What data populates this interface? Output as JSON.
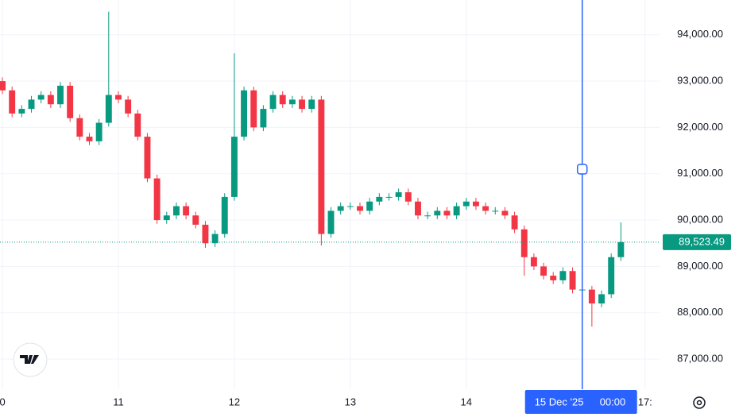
{
  "chart_data": {
    "type": "candlestick",
    "up_color": "#089981",
    "down_color": "#f23645",
    "grid": true,
    "x": [
      0,
      2,
      4,
      6,
      8,
      10,
      12,
      14,
      16,
      18,
      20,
      22,
      24,
      26,
      28,
      30,
      32,
      34,
      36,
      38,
      40,
      42,
      44,
      46,
      48,
      50,
      52,
      54,
      56,
      58,
      60,
      62,
      64,
      66,
      68,
      70,
      72,
      74,
      76,
      78,
      80,
      82,
      84,
      86,
      88,
      90,
      92,
      94,
      96,
      98,
      100,
      102,
      104,
      106,
      108,
      110,
      112,
      114,
      116,
      118,
      120,
      122,
      124,
      126,
      128
    ],
    "open": [
      93000,
      92800,
      92300,
      92400,
      92600,
      92700,
      92500,
      92900,
      92200,
      91800,
      91700,
      92100,
      92700,
      92600,
      92300,
      91800,
      90900,
      90000,
      90100,
      90300,
      90100,
      89900,
      89500,
      89700,
      90500,
      91800,
      92800,
      92000,
      92400,
      92700,
      92500,
      92600,
      92400,
      92600,
      89700,
      90200,
      90300,
      90300,
      90200,
      90400,
      90500,
      90500,
      90600,
      90400,
      90100,
      90100,
      90200,
      90100,
      90300,
      90400,
      90300,
      90200,
      90200,
      90100,
      89800,
      89200,
      89000,
      88800,
      88700,
      88900,
      88500,
      88500,
      88200,
      88400,
      89200
    ],
    "high": [
      93080,
      92880,
      92480,
      92680,
      92780,
      92780,
      92980,
      92980,
      92280,
      91880,
      92180,
      94500,
      92780,
      92680,
      92380,
      91880,
      90980,
      90180,
      90380,
      90380,
      90180,
      89980,
      89780,
      90580,
      93600,
      92880,
      92880,
      92480,
      92780,
      92780,
      92680,
      92680,
      92680,
      92680,
      90280,
      90380,
      90380,
      90380,
      90480,
      90580,
      90580,
      90680,
      90680,
      90480,
      90180,
      90280,
      90280,
      90380,
      90480,
      90480,
      90380,
      90280,
      90280,
      90180,
      89880,
      89280,
      89080,
      88880,
      88980,
      88980,
      88580,
      88580,
      88480,
      89280,
      89950
    ],
    "low": [
      92720,
      92220,
      92220,
      92320,
      92520,
      92420,
      92420,
      92120,
      91720,
      91620,
      91620,
      92020,
      92520,
      92220,
      91720,
      90820,
      89920,
      89920,
      90020,
      90020,
      89820,
      89400,
      89420,
      89620,
      90420,
      91720,
      91920,
      91920,
      92320,
      92420,
      92420,
      92320,
      92320,
      89450,
      89620,
      90120,
      90220,
      90120,
      90120,
      90320,
      90420,
      90420,
      90320,
      90020,
      90020,
      90020,
      90020,
      90020,
      90220,
      90220,
      90120,
      90120,
      90020,
      89720,
      88800,
      88920,
      88720,
      88620,
      88620,
      88420,
      88420,
      87700,
      88120,
      88320,
      89120
    ],
    "close": [
      92800,
      92300,
      92400,
      92600,
      92700,
      92500,
      92900,
      92200,
      91800,
      91700,
      92100,
      92700,
      92600,
      92300,
      91800,
      90900,
      90000,
      90100,
      90300,
      90100,
      89900,
      89500,
      89700,
      90500,
      91800,
      92800,
      92000,
      92400,
      92700,
      92500,
      92600,
      92400,
      92600,
      89700,
      90200,
      90300,
      90300,
      90200,
      90400,
      90500,
      90500,
      90600,
      90400,
      90100,
      90100,
      90200,
      90100,
      90300,
      90400,
      90300,
      90200,
      90200,
      90100,
      89800,
      89200,
      89000,
      88800,
      88700,
      88900,
      88500,
      88500,
      88200,
      88400,
      89200,
      89523.49
    ],
    "xlim": [
      -0.5,
      136
    ],
    "ylim": [
      86350,
      94750
    ],
    "xticks": [
      {
        "value": 0,
        "label": "0"
      },
      {
        "value": 24,
        "label": "11"
      },
      {
        "value": 48,
        "label": "12"
      },
      {
        "value": 72,
        "label": "13"
      },
      {
        "value": 96,
        "label": "14"
      },
      {
        "value": 133,
        "label": "17:"
      }
    ],
    "yticks": [
      {
        "value": 87000,
        "label": "87,000.00"
      },
      {
        "value": 88000,
        "label": "88,000.00"
      },
      {
        "value": 89000,
        "label": "89,000.00"
      },
      {
        "value": 90000,
        "label": "90,000.00"
      },
      {
        "value": 91000,
        "label": "91,000.00"
      },
      {
        "value": 92000,
        "label": "92,000.00"
      },
      {
        "value": 93000,
        "label": "93,000.00"
      },
      {
        "value": 94000,
        "label": "94,000.00"
      }
    ],
    "last_price": {
      "value": 89523.49,
      "label": "89,523.49"
    },
    "crosshair": {
      "x": 120,
      "date_label": "15 Dec '25",
      "time_label": "00:00"
    }
  }
}
